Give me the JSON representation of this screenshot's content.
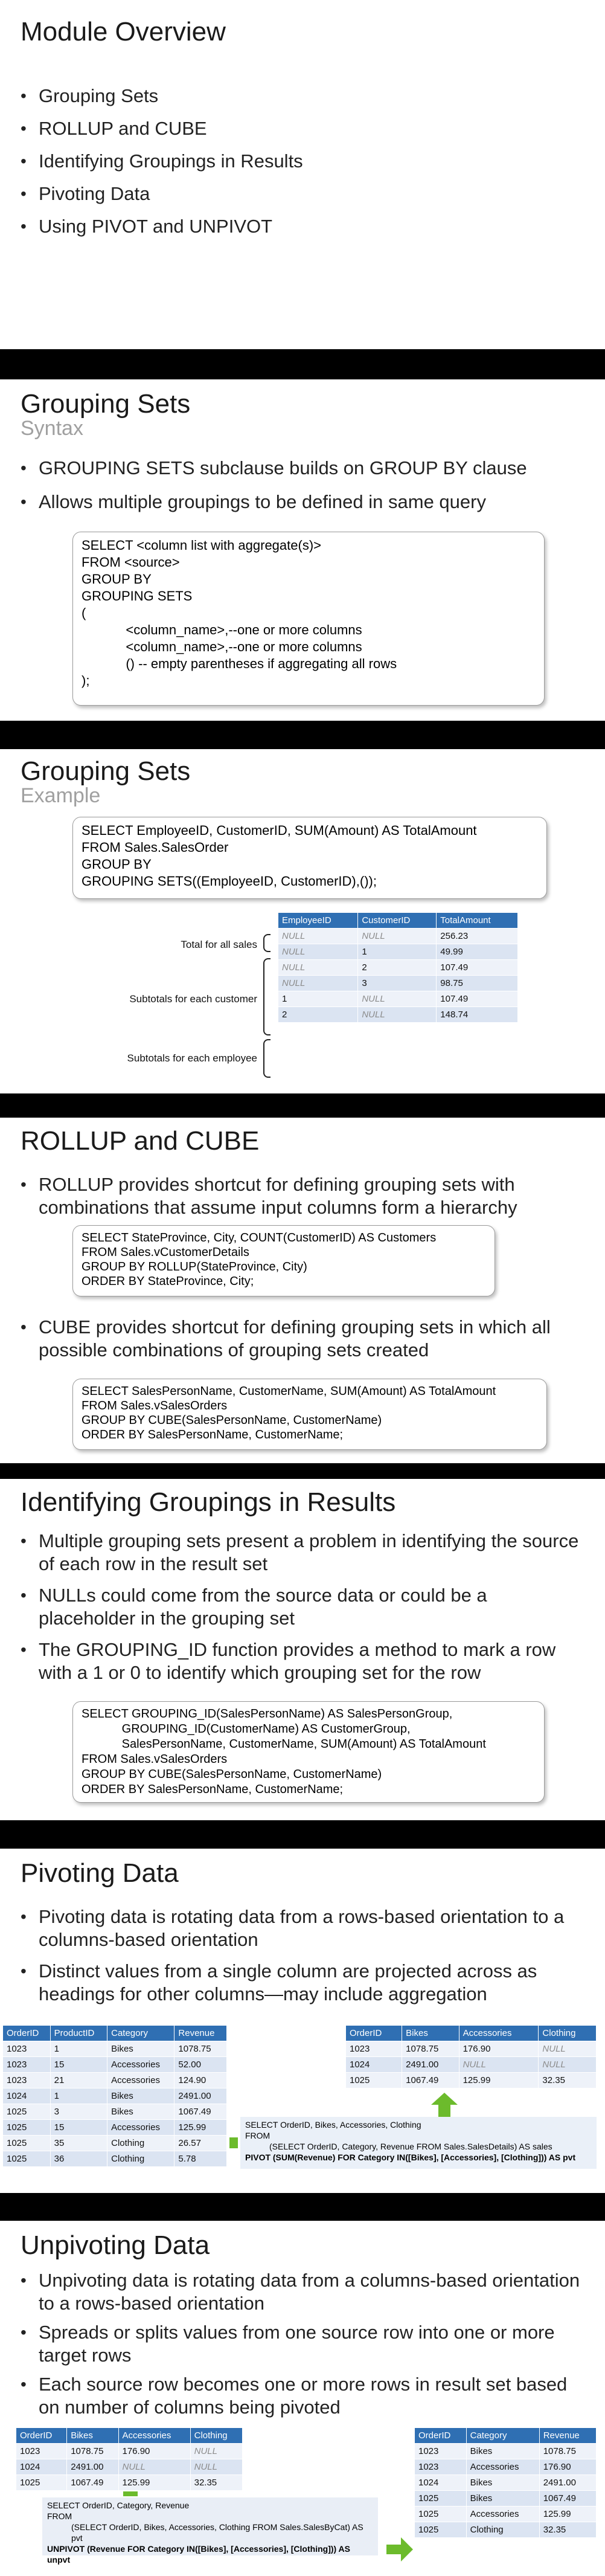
{
  "slide1": {
    "title": "Module Overview",
    "bullets": [
      "Grouping Sets",
      "ROLLUP and CUBE",
      "Identifying Groupings in Results",
      "Pivoting Data",
      "Using PIVOT and UNPIVOT"
    ]
  },
  "slide2": {
    "title": "Grouping Sets",
    "subtitle": "Syntax",
    "bullets": [
      "GROUPING SETS subclause builds on GROUP BY clause",
      "Allows multiple groupings to be defined in same query"
    ],
    "code": [
      "SELECT <column list with aggregate(s)>",
      "FROM <source>",
      "GROUP BY",
      "GROUPING SETS",
      "(",
      "            <column_name>,--one or more columns",
      "            <column_name>,--one or more columns",
      "            () -- empty parentheses if aggregating all rows",
      ");"
    ]
  },
  "slide3": {
    "title": "Grouping Sets",
    "subtitle": "Example",
    "code": [
      "SELECT EmployeeID, CustomerID, SUM(Amount) AS TotalAmount",
      "FROM Sales.SalesOrder",
      "GROUP BY",
      "GROUPING SETS((EmployeeID, CustomerID),());"
    ],
    "table": {
      "headers": [
        "EmployeeID",
        "CustomerID",
        "TotalAmount"
      ],
      "rows": [
        [
          "NULL",
          "NULL",
          "256.23"
        ],
        [
          "NULL",
          "1",
          "49.99"
        ],
        [
          "NULL",
          "2",
          "107.49"
        ],
        [
          "NULL",
          "3",
          "98.75"
        ],
        [
          "1",
          "NULL",
          "107.49"
        ],
        [
          "2",
          "NULL",
          "148.74"
        ]
      ]
    },
    "labels": [
      "Total for all sales",
      "Subtotals for each customer",
      "Subtotals for each employee"
    ]
  },
  "slide4": {
    "title": "ROLLUP and CUBE",
    "bullet1": "ROLLUP provides shortcut for defining grouping sets with combinations that assume input columns form a hierarchy",
    "code1": [
      "SELECT StateProvince, City, COUNT(CustomerID) AS Customers",
      "FROM Sales.vCustomerDetails",
      "GROUP BY ROLLUP(StateProvince, City)",
      "ORDER BY StateProvince, City;"
    ],
    "bullet2": "CUBE provides shortcut for defining grouping sets in which all possible combinations of grouping sets created",
    "code2": [
      "SELECT SalesPersonName, CustomerName, SUM(Amount) AS TotalAmount",
      "FROM Sales.vSalesOrders",
      "GROUP BY CUBE(SalesPersonName, CustomerName)",
      "ORDER BY SalesPersonName, CustomerName;"
    ]
  },
  "slide5": {
    "title": "Identifying Groupings in Results",
    "bullets": [
      "Multiple grouping sets present a problem in identifying the source of each row in the result set",
      "NULLs could come from the source data or could be a placeholder in the grouping set",
      "The GROUPING_ID function provides a method to mark a row with a 1 or 0 to identify which grouping set for the row"
    ],
    "code": [
      "SELECT GROUPING_ID(SalesPersonName) AS SalesPersonGroup,",
      "            GROUPING_ID(CustomerName) AS CustomerGroup,",
      "            SalesPersonName, CustomerName, SUM(Amount) AS TotalAmount",
      "FROM Sales.vSalesOrders",
      "GROUP BY CUBE(SalesPersonName, CustomerName)",
      "ORDER BY SalesPersonName, CustomerName;"
    ]
  },
  "slide6": {
    "title": "Pivoting Data",
    "bullets": [
      "Pivoting data is rotating data from a rows-based orientation to a columns-based orientation",
      "Distinct values from a single column are projected across as headings for other columns—may include aggregation"
    ],
    "left_table": {
      "headers": [
        "OrderID",
        "ProductID",
        "Category",
        "Revenue"
      ],
      "rows": [
        [
          "1023",
          "1",
          "Bikes",
          "1078.75"
        ],
        [
          "1023",
          "15",
          "Accessories",
          "52.00"
        ],
        [
          "1023",
          "21",
          "Accessories",
          "124.90"
        ],
        [
          "1024",
          "1",
          "Bikes",
          "2491.00"
        ],
        [
          "1025",
          "3",
          "Bikes",
          "1067.49"
        ],
        [
          "1025",
          "15",
          "Accessories",
          "125.99"
        ],
        [
          "1025",
          "35",
          "Clothing",
          "26.57"
        ],
        [
          "1025",
          "36",
          "Clothing",
          "5.78"
        ]
      ]
    },
    "right_table": {
      "headers": [
        "OrderID",
        "Bikes",
        "Accessories",
        "Clothing"
      ],
      "rows": [
        [
          "1023",
          "1078.75",
          "176.90",
          "NULL"
        ],
        [
          "1024",
          "2491.00",
          "NULL",
          "NULL"
        ],
        [
          "1025",
          "1067.49",
          "125.99",
          "32.35"
        ]
      ]
    },
    "sql": [
      "SELECT OrderID, Bikes, Accessories, Clothing",
      "FROM",
      "(SELECT OrderID, Category, Revenue FROM Sales.SalesDetails) AS sales",
      "PIVOT (SUM(Revenue) FOR Category IN([Bikes], [Accessories], [Clothing])) AS pvt"
    ],
    "colors": {
      "arrow": "#6cbb2c",
      "header": "#2f6fb3"
    }
  },
  "slide7": {
    "title": "Unpivoting Data",
    "bullets": [
      "Unpivoting data is rotating data from a columns-based orientation to a rows-based orientation",
      "Spreads or splits values from one source row into one or more target rows",
      "Each source row becomes one or more rows in result set based on number of columns being pivoted"
    ],
    "left_table": {
      "headers": [
        "OrderID",
        "Bikes",
        "Accessories",
        "Clothing"
      ],
      "rows": [
        [
          "1023",
          "1078.75",
          "176.90",
          "NULL"
        ],
        [
          "1024",
          "2491.00",
          "NULL",
          "NULL"
        ],
        [
          "1025",
          "1067.49",
          "125.99",
          "32.35"
        ]
      ]
    },
    "right_table": {
      "headers": [
        "OrderID",
        "Category",
        "Revenue"
      ],
      "rows": [
        [
          "1023",
          "Bikes",
          "1078.75"
        ],
        [
          "1023",
          "Accessories",
          "176.90"
        ],
        [
          "1024",
          "Bikes",
          "2491.00"
        ],
        [
          "1025",
          "Bikes",
          "1067.49"
        ],
        [
          "1025",
          "Accessories",
          "125.99"
        ],
        [
          "1025",
          "Clothing",
          "32.35"
        ]
      ]
    },
    "sql": [
      "SELECT OrderID, Category, Revenue",
      "FROM",
      "(SELECT OrderID, Bikes, Accessories, Clothing FROM Sales.SalesByCat) AS pvt",
      "UNPIVOT (Revenue FOR Category IN([Bikes], [Accessories], [Clothing])) AS unpvt"
    ]
  }
}
